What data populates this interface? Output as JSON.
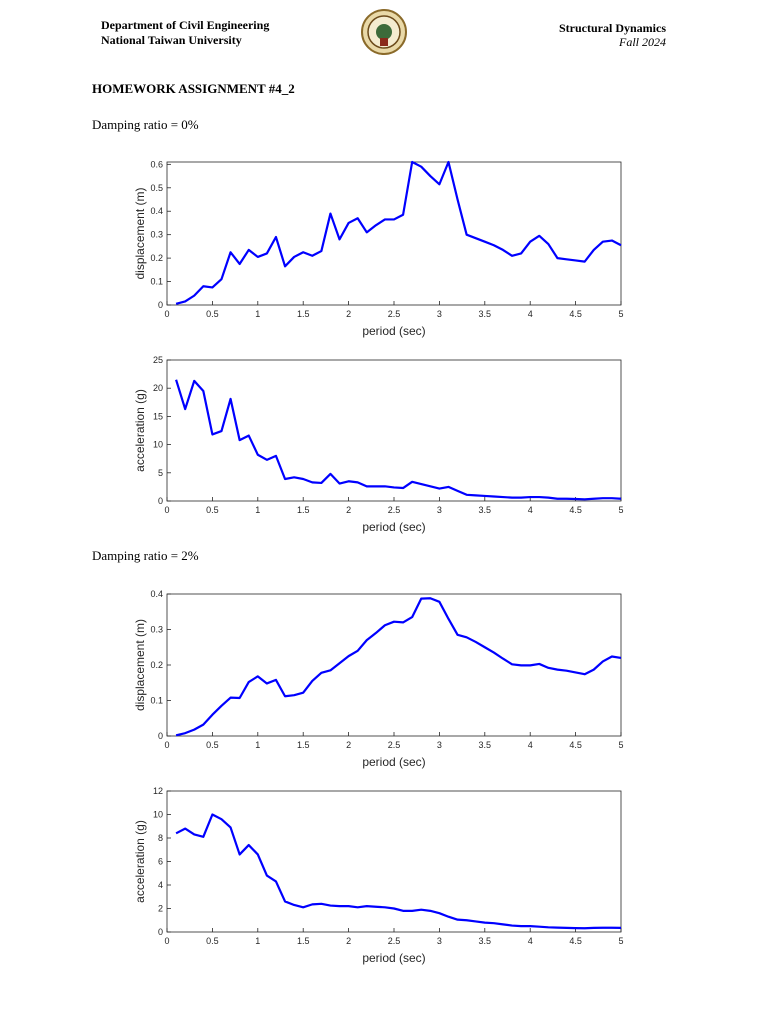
{
  "header": {
    "department": "Department of Civil Engineering",
    "university": "National Taiwan University",
    "course": "Structural Dynamics",
    "term": "Fall 2024"
  },
  "assignment_title": "HOMEWORK ASSIGNMENT #4_2",
  "sections": [
    {
      "label": "Damping ratio = 0%"
    },
    {
      "label": "Damping ratio = 2%"
    }
  ],
  "chart_data": [
    {
      "type": "line",
      "xlabel": "period (sec)",
      "ylabel": "displacement (m)",
      "color": "#0000ff",
      "x": [
        0.1,
        0.2,
        0.3,
        0.4,
        0.5,
        0.6,
        0.7,
        0.8,
        0.9,
        1.0,
        1.1,
        1.2,
        1.3,
        1.4,
        1.5,
        1.6,
        1.7,
        1.8,
        1.9,
        2.0,
        2.1,
        2.2,
        2.3,
        2.4,
        2.5,
        2.6,
        2.7,
        2.8,
        2.9,
        3.0,
        3.1,
        3.2,
        3.3,
        3.4,
        3.5,
        3.6,
        3.7,
        3.8,
        3.9,
        4.0,
        4.1,
        4.2,
        4.3,
        4.4,
        4.5,
        4.6,
        4.7,
        4.8,
        4.9,
        5.0
      ],
      "values": [
        0.005,
        0.015,
        0.04,
        0.08,
        0.075,
        0.11,
        0.225,
        0.175,
        0.235,
        0.205,
        0.22,
        0.29,
        0.165,
        0.205,
        0.225,
        0.21,
        0.23,
        0.39,
        0.28,
        0.35,
        0.37,
        0.31,
        0.34,
        0.365,
        0.365,
        0.385,
        0.61,
        0.59,
        0.55,
        0.515,
        0.61,
        0.45,
        0.3,
        0.285,
        0.27,
        0.255,
        0.235,
        0.21,
        0.22,
        0.27,
        0.295,
        0.26,
        0.2,
        0.195,
        0.19,
        0.185,
        0.235,
        0.27,
        0.275,
        0.255
      ],
      "xlim": [
        0,
        5
      ],
      "ylim": [
        0,
        0.61
      ],
      "xticks": [
        0,
        0.5,
        1,
        1.5,
        2,
        2.5,
        3,
        3.5,
        4,
        4.5,
        5
      ],
      "yticks": [
        0,
        0.1,
        0.2,
        0.3,
        0.4,
        0.5,
        0.6
      ]
    },
    {
      "type": "line",
      "xlabel": "period (sec)",
      "ylabel": "acceleration (g)",
      "color": "#0000ff",
      "x": [
        0.1,
        0.2,
        0.3,
        0.4,
        0.5,
        0.6,
        0.7,
        0.8,
        0.9,
        1.0,
        1.1,
        1.2,
        1.3,
        1.4,
        1.5,
        1.6,
        1.7,
        1.8,
        1.9,
        2.0,
        2.1,
        2.2,
        2.3,
        2.4,
        2.5,
        2.6,
        2.7,
        2.8,
        2.9,
        3.0,
        3.1,
        3.2,
        3.3,
        3.4,
        3.5,
        3.6,
        3.7,
        3.8,
        3.9,
        4.0,
        4.1,
        4.2,
        4.3,
        4.4,
        4.5,
        4.6,
        4.7,
        4.8,
        4.9,
        5.0
      ],
      "values": [
        21.5,
        16.3,
        21.3,
        19.5,
        11.8,
        12.4,
        18.1,
        10.8,
        11.6,
        8.2,
        7.3,
        8.0,
        3.9,
        4.2,
        3.9,
        3.3,
        3.2,
        4.8,
        3.1,
        3.5,
        3.3,
        2.6,
        2.6,
        2.6,
        2.4,
        2.3,
        3.4,
        3.0,
        2.6,
        2.2,
        2.5,
        1.8,
        1.1,
        1.0,
        0.9,
        0.8,
        0.7,
        0.6,
        0.6,
        0.7,
        0.7,
        0.6,
        0.4,
        0.4,
        0.35,
        0.3,
        0.4,
        0.5,
        0.5,
        0.4
      ],
      "xlim": [
        0,
        5
      ],
      "ylim": [
        0,
        25
      ],
      "xticks": [
        0,
        0.5,
        1,
        1.5,
        2,
        2.5,
        3,
        3.5,
        4,
        4.5,
        5
      ],
      "yticks": [
        0,
        5,
        10,
        15,
        20,
        25
      ]
    },
    {
      "type": "line",
      "xlabel": "period (sec)",
      "ylabel": "displacement (m)",
      "color": "#0000ff",
      "x": [
        0.1,
        0.2,
        0.3,
        0.4,
        0.5,
        0.6,
        0.7,
        0.8,
        0.9,
        1.0,
        1.1,
        1.2,
        1.3,
        1.4,
        1.5,
        1.6,
        1.7,
        1.8,
        1.9,
        2.0,
        2.1,
        2.2,
        2.3,
        2.4,
        2.5,
        2.6,
        2.7,
        2.8,
        2.9,
        3.0,
        3.1,
        3.2,
        3.3,
        3.4,
        3.5,
        3.6,
        3.7,
        3.8,
        3.9,
        4.0,
        4.1,
        4.2,
        4.3,
        4.4,
        4.5,
        4.6,
        4.7,
        4.8,
        4.9,
        5.0
      ],
      "values": [
        0.002,
        0.008,
        0.018,
        0.032,
        0.06,
        0.085,
        0.108,
        0.107,
        0.152,
        0.168,
        0.148,
        0.158,
        0.112,
        0.115,
        0.122,
        0.155,
        0.178,
        0.185,
        0.205,
        0.225,
        0.24,
        0.27,
        0.29,
        0.312,
        0.322,
        0.32,
        0.335,
        0.387,
        0.388,
        0.378,
        0.33,
        0.285,
        0.278,
        0.265,
        0.25,
        0.235,
        0.218,
        0.202,
        0.199,
        0.199,
        0.203,
        0.192,
        0.187,
        0.184,
        0.179,
        0.174,
        0.187,
        0.21,
        0.224,
        0.22
      ],
      "xlim": [
        0,
        5
      ],
      "ylim": [
        0,
        0.4
      ],
      "xticks": [
        0,
        0.5,
        1,
        1.5,
        2,
        2.5,
        3,
        3.5,
        4,
        4.5,
        5
      ],
      "yticks": [
        0,
        0.1,
        0.2,
        0.3,
        0.4
      ]
    },
    {
      "type": "line",
      "xlabel": "period (sec)",
      "ylabel": "acceleration (g)",
      "color": "#0000ff",
      "x": [
        0.1,
        0.2,
        0.3,
        0.4,
        0.5,
        0.6,
        0.7,
        0.8,
        0.9,
        1.0,
        1.1,
        1.2,
        1.3,
        1.4,
        1.5,
        1.6,
        1.7,
        1.8,
        1.9,
        2.0,
        2.1,
        2.2,
        2.3,
        2.4,
        2.5,
        2.6,
        2.7,
        2.8,
        2.9,
        3.0,
        3.1,
        3.2,
        3.3,
        3.4,
        3.5,
        3.6,
        3.7,
        3.8,
        3.9,
        4.0,
        4.1,
        4.2,
        4.3,
        4.4,
        4.5,
        4.6,
        4.7,
        4.8,
        4.9,
        5.0
      ],
      "values": [
        8.4,
        8.8,
        8.3,
        8.1,
        10.0,
        9.6,
        8.9,
        6.6,
        7.4,
        6.6,
        4.8,
        4.3,
        2.6,
        2.3,
        2.1,
        2.35,
        2.4,
        2.25,
        2.2,
        2.2,
        2.1,
        2.2,
        2.15,
        2.1,
        2.0,
        1.8,
        1.8,
        1.9,
        1.8,
        1.6,
        1.3,
        1.05,
        1.0,
        0.9,
        0.8,
        0.75,
        0.65,
        0.55,
        0.5,
        0.5,
        0.45,
        0.4,
        0.37,
        0.35,
        0.33,
        0.32,
        0.35,
        0.36,
        0.36,
        0.35
      ],
      "xlim": [
        0,
        5
      ],
      "ylim": [
        0,
        12
      ],
      "xticks": [
        0,
        0.5,
        1,
        1.5,
        2,
        2.5,
        3,
        3.5,
        4,
        4.5,
        5
      ],
      "yticks": [
        0,
        2,
        4,
        6,
        8,
        10,
        12
      ]
    }
  ]
}
